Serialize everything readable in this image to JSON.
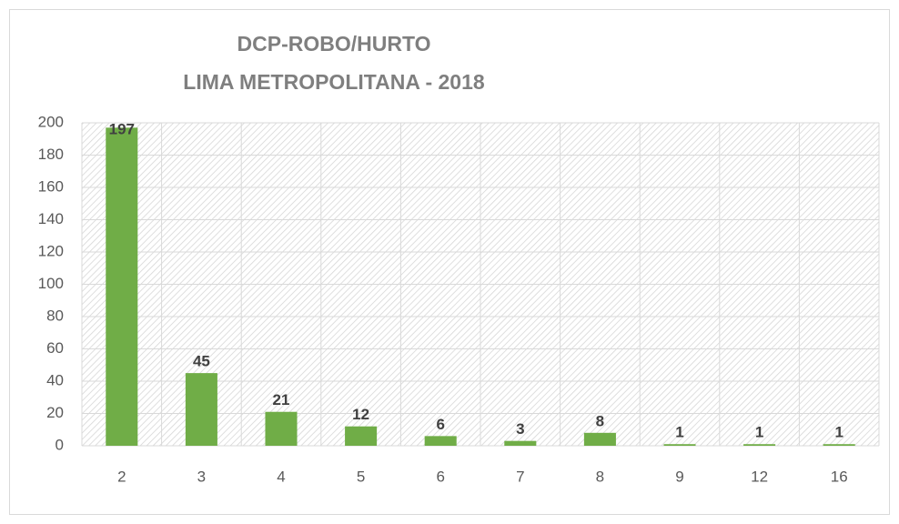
{
  "chart_data": {
    "type": "bar",
    "title": [
      "DCP-ROBO/HURTO",
      "LIMA METROPOLITANA - 2018"
    ],
    "categories": [
      "2",
      "3",
      "4",
      "5",
      "6",
      "7",
      "8",
      "9",
      "12",
      "16"
    ],
    "values": [
      197,
      45,
      21,
      12,
      6,
      3,
      8,
      1,
      1,
      1
    ],
    "color": "#70ad47",
    "ylim": [
      0,
      200
    ],
    "yticks": [
      0,
      20,
      40,
      60,
      80,
      100,
      120,
      140,
      160,
      180,
      200
    ],
    "grid": true
  }
}
